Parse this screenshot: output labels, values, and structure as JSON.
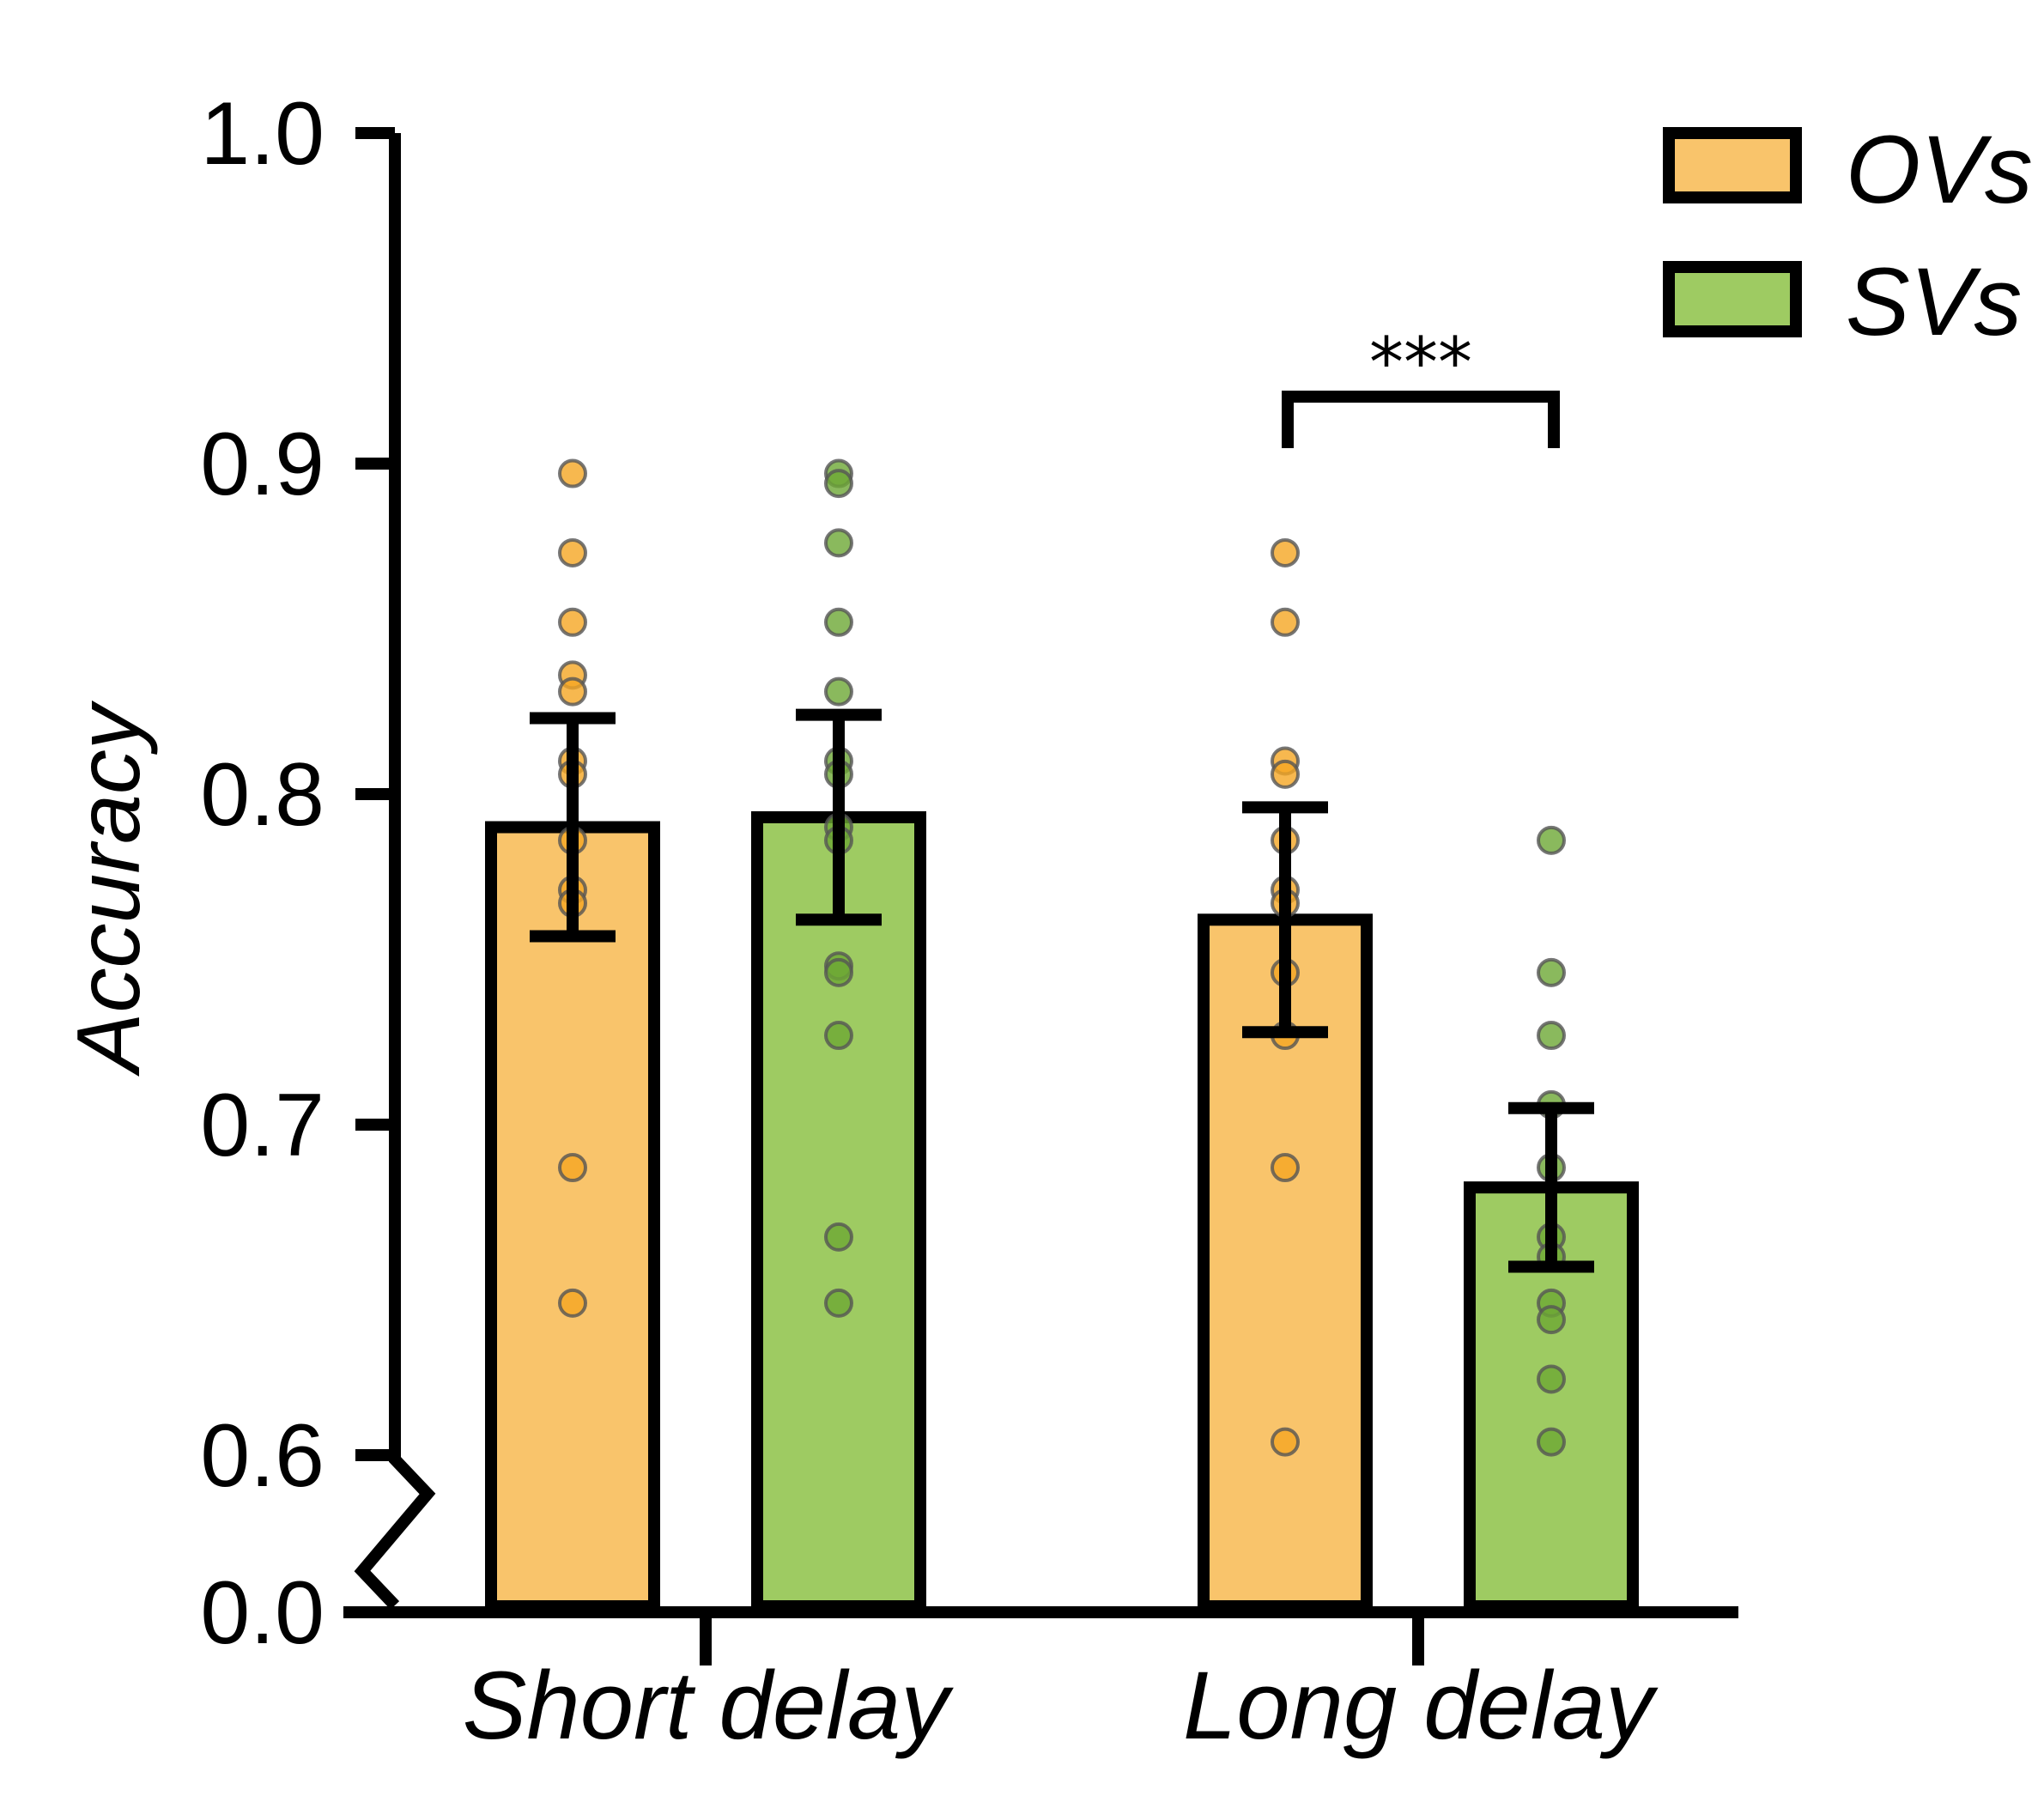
{
  "chart_data": {
    "type": "bar",
    "title": "",
    "xlabel": "",
    "ylabel": "Accuracy",
    "ylim": [
      0.6,
      1.0
    ],
    "axis_break": {
      "lower": 0.0,
      "upper": 0.6
    },
    "yticks": [
      0.0,
      0.6,
      0.7,
      0.8,
      0.9,
      1.0
    ],
    "ytick_labels": [
      "0.0",
      "0.6",
      "0.7",
      "0.8",
      "0.9",
      "1.0"
    ],
    "categories": [
      "Short delay",
      "Long delay"
    ],
    "legend_position": "top-right",
    "series": [
      {
        "name": "OVs",
        "color": "#F9C46B",
        "dot_color": "#F5A623",
        "values": [
          0.79,
          0.762
        ],
        "sem": [
          0.033,
          0.034
        ],
        "points": [
          [
            0.897,
            0.873,
            0.852,
            0.836,
            0.831,
            0.81,
            0.806,
            0.786,
            0.771,
            0.767,
            0.687,
            0.646
          ],
          [
            0.873,
            0.852,
            0.81,
            0.806,
            0.786,
            0.771,
            0.767,
            0.746,
            0.727,
            0.687,
            0.604
          ]
        ]
      },
      {
        "name": "SVs",
        "color": "#9ECB62",
        "dot_color": "#6DA834",
        "values": [
          0.793,
          0.681
        ],
        "sem": [
          0.031,
          0.024
        ],
        "points": [
          [
            0.897,
            0.894,
            0.876,
            0.852,
            0.831,
            0.81,
            0.806,
            0.79,
            0.786,
            0.748,
            0.746,
            0.727,
            0.666,
            0.646
          ],
          [
            0.786,
            0.746,
            0.727,
            0.706,
            0.687,
            0.666,
            0.66,
            0.646,
            0.641,
            0.623,
            0.604
          ]
        ]
      }
    ],
    "annotations": [
      {
        "text": "***",
        "category": "Long delay",
        "between": [
          "OVs",
          "SVs"
        ]
      }
    ]
  }
}
